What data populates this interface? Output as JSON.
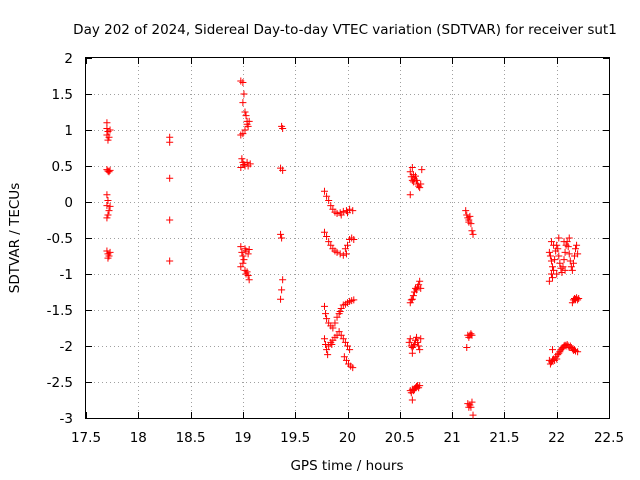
{
  "chart_data": {
    "type": "scatter",
    "title": "Day 202 of 2024, Sidereal Day-to-day VTEC variation (SDTVAR) for receiver sut1",
    "xlabel": "GPS time / hours",
    "ylabel": "SDTVAR / TECUs",
    "xlim": [
      17.5,
      22.5
    ],
    "ylim": [
      -3,
      2
    ],
    "grid": true,
    "marker": "+",
    "x_ticks": [
      17.5,
      18,
      18.5,
      19,
      19.5,
      20,
      20.5,
      21,
      21.5,
      22,
      22.5
    ],
    "x_tick_labels": [
      "17.5",
      "18",
      "18.5",
      "19",
      "19.5",
      "20",
      "20.5",
      "21",
      "21.5",
      "22",
      "22.5"
    ],
    "y_ticks": [
      2,
      1.5,
      1,
      0.5,
      0,
      -0.5,
      -1,
      -1.5,
      -2,
      -2.5,
      -3
    ],
    "y_tick_labels": [
      "2",
      "1.5",
      "1",
      "0.5",
      "0",
      "-0.5",
      "-1",
      "-1.5",
      "-2",
      "-2.5",
      "-3"
    ],
    "series": [
      {
        "name": "SDTVAR",
        "color": "#ff0000",
        "points": [
          [
            17.7,
            1.1
          ],
          [
            17.7,
            1.02
          ],
          [
            17.71,
            0.98
          ],
          [
            17.7,
            0.93
          ],
          [
            17.72,
            0.9
          ],
          [
            17.71,
            0.86
          ],
          [
            17.73,
            1.0
          ],
          [
            17.7,
            0.45
          ],
          [
            17.71,
            0.43
          ],
          [
            17.72,
            0.42
          ],
          [
            17.73,
            0.44
          ],
          [
            17.7,
            0.1
          ],
          [
            17.71,
            0.02
          ],
          [
            17.7,
            -0.05
          ],
          [
            17.72,
            -0.12
          ],
          [
            17.71,
            -0.18
          ],
          [
            17.7,
            -0.22
          ],
          [
            17.73,
            -0.06
          ],
          [
            17.7,
            -0.68
          ],
          [
            17.71,
            -0.72
          ],
          [
            17.72,
            -0.75
          ],
          [
            17.71,
            -0.78
          ],
          [
            17.73,
            -0.7
          ],
          [
            18.3,
            0.9
          ],
          [
            18.3,
            0.83
          ],
          [
            18.3,
            0.33
          ],
          [
            18.3,
            -0.25
          ],
          [
            18.3,
            -0.82
          ],
          [
            18.98,
            1.68
          ],
          [
            19.0,
            1.66
          ],
          [
            19.01,
            1.5
          ],
          [
            19.0,
            1.38
          ],
          [
            19.02,
            1.25
          ],
          [
            19.03,
            1.2
          ],
          [
            19.04,
            1.12
          ],
          [
            19.05,
            1.05
          ],
          [
            19.02,
            1.0
          ],
          [
            19.0,
            0.95
          ],
          [
            18.98,
            0.93
          ],
          [
            19.04,
            1.08
          ],
          [
            19.06,
            1.12
          ],
          [
            18.99,
            0.6
          ],
          [
            19.0,
            0.55
          ],
          [
            19.01,
            0.52
          ],
          [
            19.02,
            0.5
          ],
          [
            19.04,
            0.55
          ],
          [
            19.05,
            0.5
          ],
          [
            19.07,
            0.53
          ],
          [
            18.98,
            0.48
          ],
          [
            18.98,
            -0.62
          ],
          [
            18.99,
            -0.7
          ],
          [
            19.0,
            -0.75
          ],
          [
            19.01,
            -0.8
          ],
          [
            19.0,
            -0.85
          ],
          [
            19.02,
            -0.65
          ],
          [
            19.03,
            -0.68
          ],
          [
            19.05,
            -0.72
          ],
          [
            19.06,
            -0.66
          ],
          [
            18.98,
            -0.9
          ],
          [
            19.02,
            -0.95
          ],
          [
            19.03,
            -1.0
          ],
          [
            19.05,
            -1.02
          ],
          [
            19.04,
            -0.97
          ],
          [
            19.06,
            -1.08
          ],
          [
            19.37,
            1.05
          ],
          [
            19.38,
            1.02
          ],
          [
            19.36,
            0.47
          ],
          [
            19.38,
            0.44
          ],
          [
            19.36,
            -0.45
          ],
          [
            19.37,
            -0.5
          ],
          [
            19.38,
            -1.08
          ],
          [
            19.37,
            -1.22
          ],
          [
            19.36,
            -1.35
          ],
          [
            19.78,
            0.15
          ],
          [
            19.8,
            0.08
          ],
          [
            19.82,
            0.02
          ],
          [
            19.84,
            -0.05
          ],
          [
            19.86,
            -0.1
          ],
          [
            19.88,
            -0.14
          ],
          [
            19.9,
            -0.16
          ],
          [
            19.93,
            -0.15
          ],
          [
            19.96,
            -0.13
          ],
          [
            19.99,
            -0.12
          ],
          [
            20.02,
            -0.1
          ],
          [
            20.05,
            -0.12
          ],
          [
            19.94,
            -0.18
          ],
          [
            20.0,
            -0.15
          ],
          [
            19.78,
            -0.42
          ],
          [
            19.8,
            -0.48
          ],
          [
            19.82,
            -0.55
          ],
          [
            19.84,
            -0.6
          ],
          [
            19.86,
            -0.65
          ],
          [
            19.88,
            -0.68
          ],
          [
            19.9,
            -0.7
          ],
          [
            19.93,
            -0.72
          ],
          [
            19.96,
            -0.74
          ],
          [
            19.99,
            -0.72
          ],
          [
            19.98,
            -0.65
          ],
          [
            20.0,
            -0.6
          ],
          [
            20.02,
            -0.52
          ],
          [
            20.04,
            -0.5
          ],
          [
            20.06,
            -0.52
          ],
          [
            19.78,
            -1.45
          ],
          [
            19.79,
            -1.55
          ],
          [
            19.8,
            -1.62
          ],
          [
            19.82,
            -1.68
          ],
          [
            19.84,
            -1.72
          ],
          [
            19.86,
            -1.75
          ],
          [
            19.88,
            -1.68
          ],
          [
            19.9,
            -1.6
          ],
          [
            19.92,
            -1.55
          ],
          [
            19.94,
            -1.48
          ],
          [
            19.96,
            -1.43
          ],
          [
            19.98,
            -1.42
          ],
          [
            20.0,
            -1.4
          ],
          [
            20.02,
            -1.38
          ],
          [
            20.04,
            -1.37
          ],
          [
            20.06,
            -1.36
          ],
          [
            19.93,
            -1.52
          ],
          [
            19.78,
            -1.9
          ],
          [
            19.79,
            -1.98
          ],
          [
            19.8,
            -2.05
          ],
          [
            19.81,
            -2.12
          ],
          [
            19.82,
            -2.0
          ],
          [
            19.84,
            -1.95
          ],
          [
            19.86,
            -1.92
          ],
          [
            19.88,
            -1.88
          ],
          [
            19.9,
            -1.85
          ],
          [
            19.92,
            -1.8
          ],
          [
            19.94,
            -1.85
          ],
          [
            19.96,
            -1.9
          ],
          [
            19.98,
            -1.95
          ],
          [
            20.0,
            -2.0
          ],
          [
            20.02,
            -2.05
          ],
          [
            19.97,
            -2.15
          ],
          [
            19.99,
            -2.2
          ],
          [
            20.01,
            -2.25
          ],
          [
            20.03,
            -2.28
          ],
          [
            20.05,
            -2.3
          ],
          [
            19.85,
            -1.98
          ],
          [
            20.62,
            0.48
          ],
          [
            20.6,
            0.42
          ],
          [
            20.61,
            0.35
          ],
          [
            20.62,
            0.3
          ],
          [
            20.63,
            0.28
          ],
          [
            20.64,
            0.32
          ],
          [
            20.65,
            0.36
          ],
          [
            20.66,
            0.3
          ],
          [
            20.67,
            0.25
          ],
          [
            20.68,
            0.22
          ],
          [
            20.69,
            0.2
          ],
          [
            20.7,
            0.25
          ],
          [
            20.71,
            0.45
          ],
          [
            20.6,
            0.1
          ],
          [
            20.63,
            0.38
          ],
          [
            20.6,
            -1.4
          ],
          [
            20.61,
            -1.36
          ],
          [
            20.62,
            -1.35
          ],
          [
            20.63,
            -1.3
          ],
          [
            20.64,
            -1.25
          ],
          [
            20.65,
            -1.2
          ],
          [
            20.66,
            -1.22
          ],
          [
            20.67,
            -1.18
          ],
          [
            20.68,
            -1.15
          ],
          [
            20.69,
            -1.1
          ],
          [
            20.7,
            -1.2
          ],
          [
            20.59,
            -1.95
          ],
          [
            20.6,
            -1.9
          ],
          [
            20.61,
            -2.0
          ],
          [
            20.62,
            -2.02
          ],
          [
            20.63,
            -2.0
          ],
          [
            20.64,
            -1.98
          ],
          [
            20.65,
            -1.92
          ],
          [
            20.66,
            -1.88
          ],
          [
            20.67,
            -1.95
          ],
          [
            20.68,
            -2.0
          ],
          [
            20.69,
            -2.05
          ],
          [
            20.7,
            -1.9
          ],
          [
            20.62,
            -2.1
          ],
          [
            20.6,
            -2.62
          ],
          [
            20.61,
            -2.65
          ],
          [
            20.62,
            -2.6
          ],
          [
            20.63,
            -2.62
          ],
          [
            20.64,
            -2.6
          ],
          [
            20.65,
            -2.58
          ],
          [
            20.66,
            -2.56
          ],
          [
            20.67,
            -2.55
          ],
          [
            20.68,
            -2.58
          ],
          [
            20.69,
            -2.55
          ],
          [
            20.62,
            -2.75
          ],
          [
            21.13,
            -0.12
          ],
          [
            21.14,
            -0.18
          ],
          [
            21.15,
            -0.22
          ],
          [
            21.16,
            -0.25
          ],
          [
            21.17,
            -0.2
          ],
          [
            21.18,
            -0.3
          ],
          [
            21.19,
            -0.4
          ],
          [
            21.2,
            -0.45
          ],
          [
            21.16,
            -0.28
          ],
          [
            21.15,
            -1.85
          ],
          [
            21.16,
            -1.88
          ],
          [
            21.17,
            -1.85
          ],
          [
            21.18,
            -1.83
          ],
          [
            21.19,
            -1.85
          ],
          [
            21.14,
            -2.02
          ],
          [
            21.15,
            -2.8
          ],
          [
            21.16,
            -2.85
          ],
          [
            21.17,
            -2.82
          ],
          [
            21.18,
            -2.85
          ],
          [
            21.19,
            -2.78
          ],
          [
            21.2,
            -2.96
          ],
          [
            21.93,
            -0.7
          ],
          [
            21.94,
            -0.75
          ],
          [
            21.95,
            -0.82
          ],
          [
            21.96,
            -0.9
          ],
          [
            21.97,
            -0.95
          ],
          [
            21.98,
            -0.8
          ],
          [
            21.99,
            -0.68
          ],
          [
            22.0,
            -0.6
          ],
          [
            22.01,
            -0.65
          ],
          [
            22.02,
            -0.75
          ],
          [
            22.03,
            -0.85
          ],
          [
            22.04,
            -0.92
          ],
          [
            22.05,
            -0.98
          ],
          [
            22.06,
            -0.9
          ],
          [
            22.07,
            -0.8
          ],
          [
            22.08,
            -0.7
          ],
          [
            22.09,
            -0.6
          ],
          [
            22.1,
            -0.55
          ],
          [
            22.11,
            -0.62
          ],
          [
            22.12,
            -0.72
          ],
          [
            22.13,
            -0.82
          ],
          [
            22.14,
            -0.9
          ],
          [
            22.15,
            -0.95
          ],
          [
            22.16,
            -0.85
          ],
          [
            22.17,
            -0.75
          ],
          [
            22.18,
            -0.65
          ],
          [
            22.19,
            -0.6
          ],
          [
            21.95,
            -0.55
          ],
          [
            21.97,
            -0.6
          ],
          [
            22.02,
            -0.5
          ],
          [
            22.07,
            -0.55
          ],
          [
            22.12,
            -0.5
          ],
          [
            21.93,
            -1.1
          ],
          [
            21.95,
            -1.0
          ],
          [
            21.96,
            -1.05
          ],
          [
            22.0,
            -1.0
          ],
          [
            22.08,
            -0.95
          ],
          [
            22.2,
            -0.72
          ],
          [
            22.15,
            -1.4
          ],
          [
            22.16,
            -1.36
          ],
          [
            22.17,
            -1.34
          ],
          [
            22.18,
            -1.35
          ],
          [
            22.19,
            -1.33
          ],
          [
            22.2,
            -1.36
          ],
          [
            22.21,
            -1.34
          ],
          [
            21.93,
            -2.2
          ],
          [
            21.94,
            -2.25
          ],
          [
            21.95,
            -2.22
          ],
          [
            21.96,
            -2.2
          ],
          [
            21.97,
            -2.18
          ],
          [
            21.98,
            -2.2
          ],
          [
            21.99,
            -2.15
          ],
          [
            22.0,
            -2.18
          ],
          [
            22.01,
            -2.12
          ],
          [
            22.02,
            -2.1
          ],
          [
            22.03,
            -2.08
          ],
          [
            22.04,
            -2.05
          ],
          [
            22.05,
            -2.03
          ],
          [
            22.06,
            -2.02
          ],
          [
            22.07,
            -2.0
          ],
          [
            22.08,
            -1.99
          ],
          [
            22.09,
            -2.0
          ],
          [
            22.1,
            -1.98
          ],
          [
            22.11,
            -2.0
          ],
          [
            22.12,
            -2.02
          ],
          [
            22.13,
            -2.0
          ],
          [
            22.14,
            -2.02
          ],
          [
            22.15,
            -2.04
          ],
          [
            22.16,
            -2.06
          ],
          [
            22.17,
            -2.05
          ],
          [
            22.18,
            -2.07
          ],
          [
            22.2,
            -2.08
          ],
          [
            21.96,
            -2.05
          ]
        ]
      }
    ]
  }
}
